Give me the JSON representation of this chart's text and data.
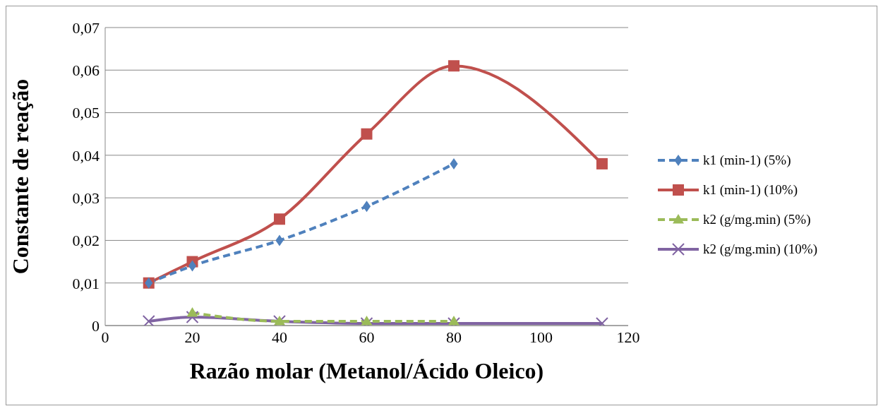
{
  "chart_data": {
    "type": "line",
    "xlabel": "Razão molar (Metanol/Ácido Oleico)",
    "ylabel": "Constante de reação",
    "xlim": [
      0,
      120
    ],
    "xticks": [
      0,
      20,
      40,
      60,
      80,
      100,
      120
    ],
    "ylim": [
      0,
      0.07
    ],
    "yticks": [
      {
        "value": 0,
        "label": "0"
      },
      {
        "value": 0.01,
        "label": "0,01"
      },
      {
        "value": 0.02,
        "label": "0,02"
      },
      {
        "value": 0.03,
        "label": "0,03"
      },
      {
        "value": 0.04,
        "label": "0,04"
      },
      {
        "value": 0.05,
        "label": "0,05"
      },
      {
        "value": 0.06,
        "label": "0,06"
      },
      {
        "value": 0.07,
        "label": "0,07"
      }
    ],
    "grid": "y",
    "legend": "right",
    "series": [
      {
        "name": "k1 (min-1) (5%)",
        "color": "#4f81bd",
        "marker": "diamond",
        "line_style": "dashed",
        "x": [
          10,
          20,
          40,
          60,
          80
        ],
        "values": [
          0.01,
          0.014,
          0.02,
          0.028,
          0.038
        ]
      },
      {
        "name": "k1 (min-1) (10%)",
        "color": "#c0504d",
        "marker": "square",
        "line_style": "solid",
        "x": [
          10,
          20,
          40,
          60,
          80,
          114
        ],
        "values": [
          0.01,
          0.015,
          0.025,
          0.045,
          0.061,
          0.038
        ]
      },
      {
        "name": "k2 (g/mg.min) (5%)",
        "color": "#9bbb59",
        "marker": "triangle",
        "line_style": "dashed",
        "x": [
          20,
          40,
          60,
          80
        ],
        "values": [
          0.003,
          0.001,
          0.001,
          0.001
        ]
      },
      {
        "name": "k2 (g/mg.min) (10%)",
        "color": "#8064a2",
        "marker": "cross",
        "line_style": "solid",
        "x": [
          10,
          20,
          40,
          60,
          80,
          114
        ],
        "values": [
          0.001,
          0.002,
          0.001,
          0.0005,
          0.0005,
          0.0005
        ]
      }
    ]
  }
}
